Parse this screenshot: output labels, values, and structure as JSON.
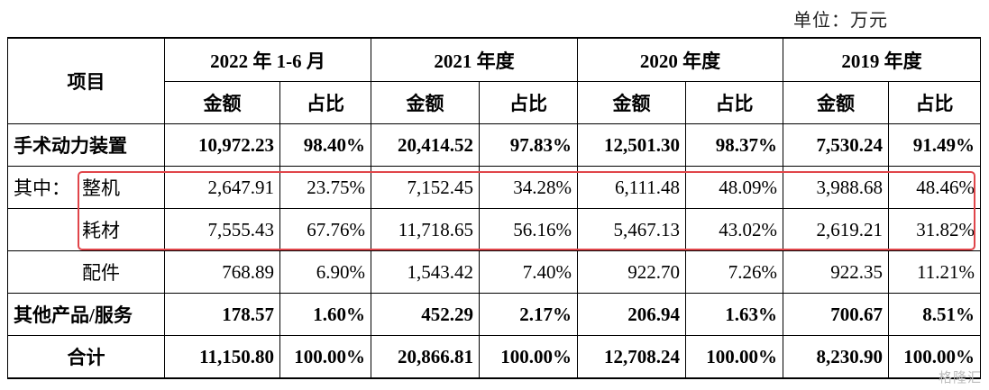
{
  "unit_label": "单位：万元",
  "headers": {
    "item": "项目",
    "periods": [
      "2022 年 1-6 月",
      "2021 年度",
      "2020 年度",
      "2019 年度"
    ],
    "amount": "金额",
    "ratio": "占比"
  },
  "rows": {
    "surgical": {
      "label": "手术动力装置",
      "values": [
        "10,972.23",
        "98.40%",
        "20,414.52",
        "97.83%",
        "12,501.30",
        "98.37%",
        "7,530.24",
        "91.49%"
      ]
    },
    "machine": {
      "prefix": "其中：",
      "label": "整机",
      "values": [
        "2,647.91",
        "23.75%",
        "7,152.45",
        "34.28%",
        "6,111.48",
        "48.09%",
        "3,988.68",
        "48.46%"
      ]
    },
    "consumables": {
      "label": "耗材",
      "values": [
        "7,555.43",
        "67.76%",
        "11,718.65",
        "56.16%",
        "5,467.13",
        "43.02%",
        "2,619.21",
        "31.82%"
      ]
    },
    "parts": {
      "label": "配件",
      "values": [
        "768.89",
        "6.90%",
        "1,543.42",
        "7.40%",
        "922.70",
        "7.26%",
        "922.35",
        "11.21%"
      ]
    },
    "other": {
      "label": "其他产品/服务",
      "values": [
        "178.57",
        "1.60%",
        "452.29",
        "2.17%",
        "206.94",
        "1.63%",
        "700.67",
        "8.51%"
      ]
    },
    "total": {
      "label": "合计",
      "values": [
        "11,150.80",
        "100.00%",
        "20,866.81",
        "100.00%",
        "12,708.24",
        "100.00%",
        "8,230.90",
        "100.00%"
      ]
    }
  },
  "highlight_color": "#e0454a",
  "watermark": "格隆汇"
}
